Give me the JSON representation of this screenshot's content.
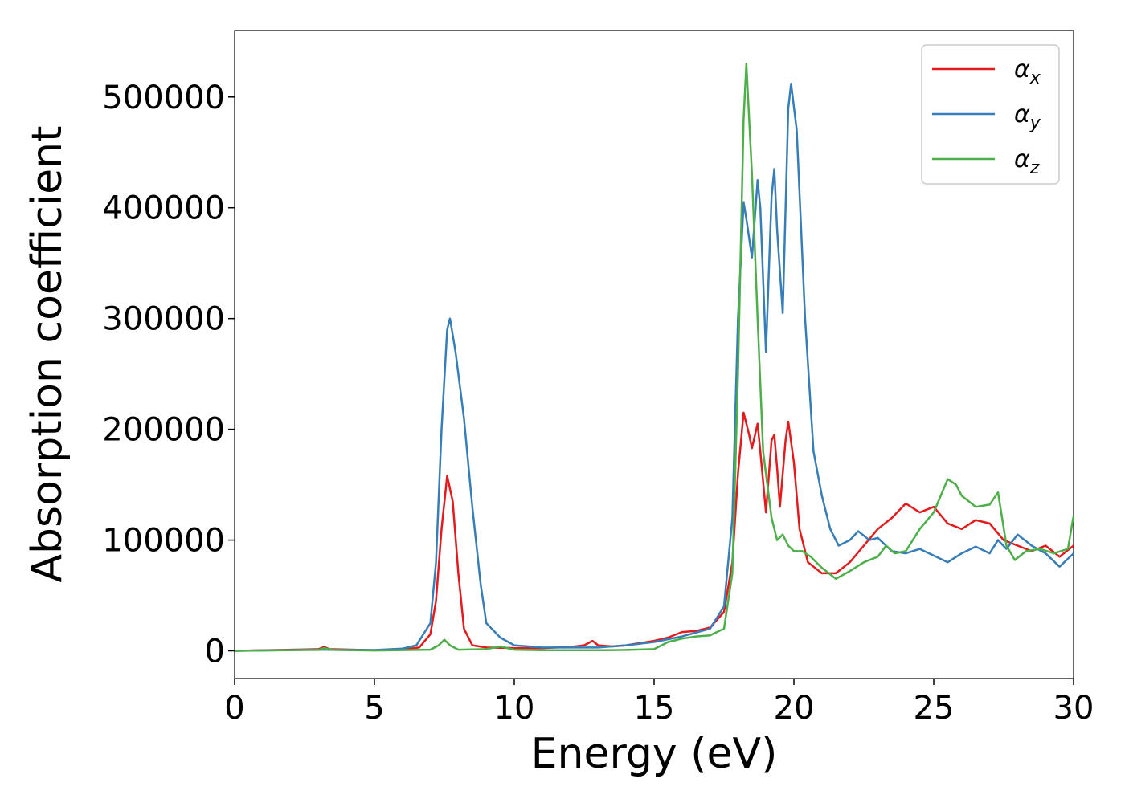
{
  "chart_data": {
    "type": "line",
    "xlabel": "Energy (eV)",
    "ylabel": "Absorption coefficient",
    "xlim": [
      0,
      30
    ],
    "ylim": [
      -25000,
      560000
    ],
    "xticks": [
      0,
      5,
      10,
      15,
      20,
      25,
      30
    ],
    "yticks": [
      0,
      100000,
      200000,
      300000,
      400000,
      500000
    ],
    "grid": false,
    "legend_position": "top-right",
    "series": [
      {
        "name": "x",
        "color": "#e41a1c",
        "points": [
          [
            0,
            0
          ],
          [
            3.0,
            1500
          ],
          [
            3.2,
            3500
          ],
          [
            3.4,
            1500
          ],
          [
            5,
            600
          ],
          [
            6,
            1200
          ],
          [
            6.6,
            3000
          ],
          [
            7.0,
            15000
          ],
          [
            7.2,
            45000
          ],
          [
            7.4,
            110000
          ],
          [
            7.6,
            158000
          ],
          [
            7.8,
            135000
          ],
          [
            8.0,
            70000
          ],
          [
            8.2,
            20000
          ],
          [
            8.5,
            5000
          ],
          [
            9,
            3000
          ],
          [
            10,
            2500
          ],
          [
            11,
            2500
          ],
          [
            11.5,
            3000
          ],
          [
            12.0,
            3500
          ],
          [
            12.5,
            5000
          ],
          [
            12.8,
            9000
          ],
          [
            13.0,
            5000
          ],
          [
            13.5,
            4000
          ],
          [
            14.0,
            5000
          ],
          [
            14.5,
            7000
          ],
          [
            15.0,
            9000
          ],
          [
            15.5,
            12000
          ],
          [
            16.0,
            17000
          ],
          [
            16.5,
            18000
          ],
          [
            17.0,
            21000
          ],
          [
            17.5,
            35000
          ],
          [
            17.8,
            80000
          ],
          [
            18.0,
            160000
          ],
          [
            18.2,
            215000
          ],
          [
            18.4,
            195000
          ],
          [
            18.5,
            183000
          ],
          [
            18.7,
            205000
          ],
          [
            18.8,
            180000
          ],
          [
            19.0,
            125000
          ],
          [
            19.2,
            190000
          ],
          [
            19.3,
            195000
          ],
          [
            19.4,
            165000
          ],
          [
            19.5,
            130000
          ],
          [
            19.7,
            190000
          ],
          [
            19.8,
            207000
          ],
          [
            20.0,
            170000
          ],
          [
            20.2,
            110000
          ],
          [
            20.5,
            80000
          ],
          [
            21.0,
            70000
          ],
          [
            21.5,
            70000
          ],
          [
            22.0,
            80000
          ],
          [
            22.5,
            95000
          ],
          [
            23.0,
            110000
          ],
          [
            23.5,
            120000
          ],
          [
            24.0,
            133000
          ],
          [
            24.5,
            125000
          ],
          [
            25.0,
            130000
          ],
          [
            25.5,
            115000
          ],
          [
            26.0,
            110000
          ],
          [
            26.5,
            118000
          ],
          [
            27.0,
            115000
          ],
          [
            27.5,
            100000
          ],
          [
            28.0,
            95000
          ],
          [
            28.5,
            90000
          ],
          [
            29.0,
            95000
          ],
          [
            29.5,
            85000
          ],
          [
            30.0,
            95000
          ]
        ]
      },
      {
        "name": "y",
        "color": "#377eb8",
        "points": [
          [
            0,
            0
          ],
          [
            3,
            1000
          ],
          [
            5,
            700
          ],
          [
            6,
            2000
          ],
          [
            6.5,
            5000
          ],
          [
            7.0,
            25000
          ],
          [
            7.2,
            80000
          ],
          [
            7.4,
            200000
          ],
          [
            7.6,
            290000
          ],
          [
            7.7,
            300000
          ],
          [
            7.9,
            270000
          ],
          [
            8.2,
            210000
          ],
          [
            8.5,
            130000
          ],
          [
            8.8,
            60000
          ],
          [
            9.0,
            25000
          ],
          [
            9.5,
            12000
          ],
          [
            10,
            5000
          ],
          [
            11,
            3000
          ],
          [
            12,
            3000
          ],
          [
            13,
            3000
          ],
          [
            14,
            5000
          ],
          [
            15,
            8000
          ],
          [
            16,
            13000
          ],
          [
            17,
            20000
          ],
          [
            17.5,
            40000
          ],
          [
            17.8,
            120000
          ],
          [
            18.0,
            300000
          ],
          [
            18.2,
            405000
          ],
          [
            18.3,
            390000
          ],
          [
            18.5,
            355000
          ],
          [
            18.7,
            425000
          ],
          [
            18.8,
            400000
          ],
          [
            19.0,
            270000
          ],
          [
            19.2,
            410000
          ],
          [
            19.3,
            435000
          ],
          [
            19.4,
            380000
          ],
          [
            19.6,
            305000
          ],
          [
            19.8,
            490000
          ],
          [
            19.9,
            512000
          ],
          [
            20.1,
            470000
          ],
          [
            20.4,
            300000
          ],
          [
            20.7,
            180000
          ],
          [
            21.0,
            140000
          ],
          [
            21.3,
            110000
          ],
          [
            21.6,
            95000
          ],
          [
            22,
            100000
          ],
          [
            22.3,
            108000
          ],
          [
            22.7,
            100000
          ],
          [
            23.0,
            102000
          ],
          [
            23.5,
            90000
          ],
          [
            24.0,
            88000
          ],
          [
            24.5,
            92000
          ],
          [
            25.0,
            86000
          ],
          [
            25.5,
            80000
          ],
          [
            26.0,
            88000
          ],
          [
            26.5,
            94000
          ],
          [
            27.0,
            88000
          ],
          [
            27.3,
            100000
          ],
          [
            27.6,
            92000
          ],
          [
            28.0,
            105000
          ],
          [
            28.5,
            95000
          ],
          [
            29.0,
            88000
          ],
          [
            29.5,
            76000
          ],
          [
            30.0,
            88000
          ]
        ]
      },
      {
        "name": "z",
        "color": "#4daf4a",
        "points": [
          [
            0,
            0
          ],
          [
            3,
            800
          ],
          [
            3.2,
            2500
          ],
          [
            3.5,
            800
          ],
          [
            5,
            300
          ],
          [
            7.0,
            1000
          ],
          [
            7.3,
            5000
          ],
          [
            7.5,
            10000
          ],
          [
            7.7,
            5000
          ],
          [
            8.0,
            1000
          ],
          [
            9.0,
            1500
          ],
          [
            9.5,
            4000
          ],
          [
            10,
            1000
          ],
          [
            11,
            500
          ],
          [
            13,
            500
          ],
          [
            14,
            800
          ],
          [
            15,
            1500
          ],
          [
            15.5,
            8000
          ],
          [
            16.0,
            11000
          ],
          [
            16.5,
            13000
          ],
          [
            17.0,
            14000
          ],
          [
            17.5,
            20000
          ],
          [
            17.8,
            70000
          ],
          [
            18.0,
            250000
          ],
          [
            18.2,
            480000
          ],
          [
            18.3,
            530000
          ],
          [
            18.5,
            430000
          ],
          [
            18.7,
            300000
          ],
          [
            18.9,
            180000
          ],
          [
            19.2,
            120000
          ],
          [
            19.4,
            100000
          ],
          [
            19.6,
            105000
          ],
          [
            19.8,
            95000
          ],
          [
            20.0,
            90000
          ],
          [
            20.3,
            90000
          ],
          [
            20.6,
            85000
          ],
          [
            21.0,
            75000
          ],
          [
            21.5,
            65000
          ],
          [
            22.0,
            72000
          ],
          [
            22.5,
            80000
          ],
          [
            23.0,
            85000
          ],
          [
            23.3,
            95000
          ],
          [
            23.6,
            88000
          ],
          [
            24.0,
            90000
          ],
          [
            24.5,
            110000
          ],
          [
            25.0,
            125000
          ],
          [
            25.5,
            155000
          ],
          [
            25.8,
            150000
          ],
          [
            26.0,
            140000
          ],
          [
            26.5,
            130000
          ],
          [
            27.0,
            132000
          ],
          [
            27.3,
            143000
          ],
          [
            27.6,
            95000
          ],
          [
            27.9,
            82000
          ],
          [
            28.3,
            90000
          ],
          [
            28.8,
            92000
          ],
          [
            29.3,
            88000
          ],
          [
            29.8,
            92000
          ],
          [
            30.0,
            122000
          ]
        ]
      }
    ]
  }
}
